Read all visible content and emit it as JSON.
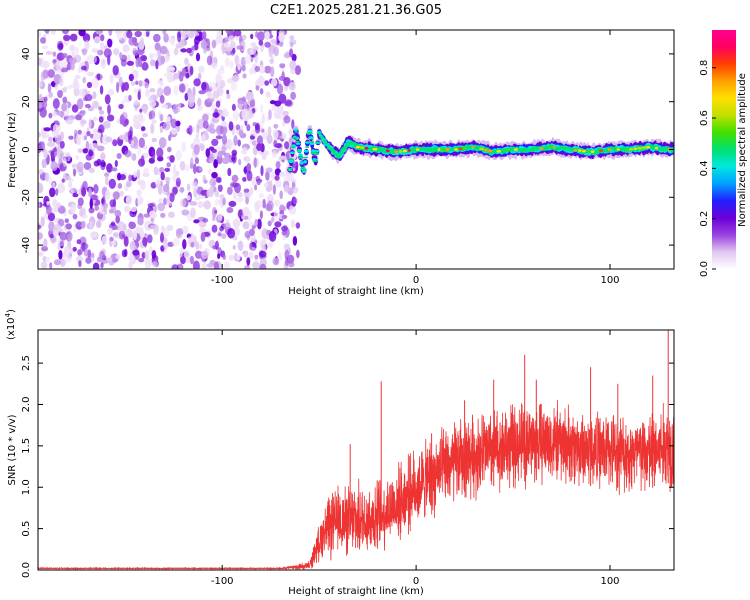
{
  "title": "C2E1.2025.281.21.36.G05",
  "chart_data": [
    {
      "type": "heatmap",
      "name": "spectrogram",
      "xlabel": "Height of straight line (km)",
      "ylabel": "Frequency (Hz)",
      "xlim": [
        -195,
        133
      ],
      "ylim": [
        -50,
        50
      ],
      "xticks": [
        -100,
        0,
        100
      ],
      "xtick_labels": [
        "-100",
        "0",
        "100"
      ],
      "yticks": [
        -40,
        -20,
        0,
        20,
        40
      ],
      "ytick_labels": [
        "-40",
        "-20",
        "0",
        "20",
        "40"
      ],
      "noise_region_x": [
        -195,
        -65
      ],
      "signal_track": [
        {
          "x": -65,
          "y": -8
        },
        {
          "x": -62,
          "y": 8
        },
        {
          "x": -58,
          "y": -10
        },
        {
          "x": -55,
          "y": 9
        },
        {
          "x": -52,
          "y": -6
        },
        {
          "x": -50,
          "y": 7
        },
        {
          "x": -47,
          "y": 3
        },
        {
          "x": -45,
          "y": 1
        },
        {
          "x": -40,
          "y": -3
        },
        {
          "x": -35,
          "y": 3
        },
        {
          "x": -30,
          "y": 1
        },
        {
          "x": -20,
          "y": 0
        },
        {
          "x": -10,
          "y": -1
        },
        {
          "x": 0,
          "y": 0
        },
        {
          "x": 10,
          "y": 0
        },
        {
          "x": 20,
          "y": 0
        },
        {
          "x": 30,
          "y": 1
        },
        {
          "x": 40,
          "y": -1
        },
        {
          "x": 50,
          "y": 0
        },
        {
          "x": 60,
          "y": 0
        },
        {
          "x": 70,
          "y": 1
        },
        {
          "x": 80,
          "y": 0
        },
        {
          "x": 90,
          "y": -1
        },
        {
          "x": 100,
          "y": 0
        },
        {
          "x": 110,
          "y": 0
        },
        {
          "x": 120,
          "y": 1
        },
        {
          "x": 130,
          "y": 0
        }
      ],
      "colorbar": {
        "label": "Normalized spectral amplitude",
        "ticks": [
          0.0,
          0.2,
          0.4,
          0.6,
          0.8
        ],
        "tick_labels": [
          "0.0",
          "0.2",
          "0.4",
          "0.6",
          "0.8"
        ],
        "range": [
          0,
          0.95
        ],
        "colors": [
          "#ffffff",
          "#e0c8f0",
          "#9a40e0",
          "#6a00d8",
          "#2020ff",
          "#00a0ff",
          "#00e8e0",
          "#00e070",
          "#40e000",
          "#c0e000",
          "#ffe000",
          "#ffa000",
          "#ff4000",
          "#ff0060",
          "#ff0090"
        ]
      }
    },
    {
      "type": "line",
      "name": "snr",
      "xlabel": "Height of straight line (km)",
      "ylabel": "SNR (10 * v/v)",
      "y_multiplier": "(x10",
      "y_multiplier_exp": "4",
      "y_multiplier_close": ")",
      "xlim": [
        -195,
        133
      ],
      "ylim": [
        0,
        2.9
      ],
      "xticks": [
        -100,
        0,
        100
      ],
      "xtick_labels": [
        "-100",
        "0",
        "100"
      ],
      "yticks": [
        0.0,
        0.5,
        1.0,
        1.5,
        2.0,
        2.5
      ],
      "ytick_labels": [
        "0.0",
        "0.5",
        "1.0",
        "1.5",
        "2.0",
        "2.5"
      ],
      "line_color": "#ee3333",
      "envelope": [
        {
          "x": -195,
          "y": 0.02
        },
        {
          "x": -70,
          "y": 0.02
        },
        {
          "x": -55,
          "y": 0.05
        },
        {
          "x": -48,
          "y": 0.45
        },
        {
          "x": -40,
          "y": 0.6
        },
        {
          "x": -30,
          "y": 0.6
        },
        {
          "x": -20,
          "y": 0.65
        },
        {
          "x": -10,
          "y": 0.8
        },
        {
          "x": 0,
          "y": 1.0
        },
        {
          "x": 10,
          "y": 1.15
        },
        {
          "x": 20,
          "y": 1.3
        },
        {
          "x": 30,
          "y": 1.4
        },
        {
          "x": 40,
          "y": 1.45
        },
        {
          "x": 50,
          "y": 1.5
        },
        {
          "x": 60,
          "y": 1.55
        },
        {
          "x": 70,
          "y": 1.55
        },
        {
          "x": 80,
          "y": 1.5
        },
        {
          "x": 90,
          "y": 1.45
        },
        {
          "x": 100,
          "y": 1.45
        },
        {
          "x": 110,
          "y": 1.4
        },
        {
          "x": 120,
          "y": 1.4
        },
        {
          "x": 130,
          "y": 1.5
        }
      ],
      "noise_amplitude": [
        {
          "x": -195,
          "y": 0.005
        },
        {
          "x": -70,
          "y": 0.005
        },
        {
          "x": -55,
          "y": 0.05
        },
        {
          "x": -45,
          "y": 0.35
        },
        {
          "x": -30,
          "y": 0.4
        },
        {
          "x": -10,
          "y": 0.4
        },
        {
          "x": 20,
          "y": 0.45
        },
        {
          "x": 60,
          "y": 0.45
        },
        {
          "x": 100,
          "y": 0.4
        },
        {
          "x": 133,
          "y": 0.5
        }
      ],
      "spikes": [
        {
          "x": -34,
          "y": 1.52
        },
        {
          "x": -18,
          "y": 2.28
        },
        {
          "x": 8,
          "y": 1.65
        },
        {
          "x": 25,
          "y": 2.05
        },
        {
          "x": 40,
          "y": 2.3
        },
        {
          "x": 56,
          "y": 2.6
        },
        {
          "x": 62,
          "y": 2.3
        },
        {
          "x": 90,
          "y": 2.45
        },
        {
          "x": 104,
          "y": 2.25
        },
        {
          "x": 122,
          "y": 2.35
        },
        {
          "x": 130,
          "y": 2.9
        }
      ]
    }
  ]
}
